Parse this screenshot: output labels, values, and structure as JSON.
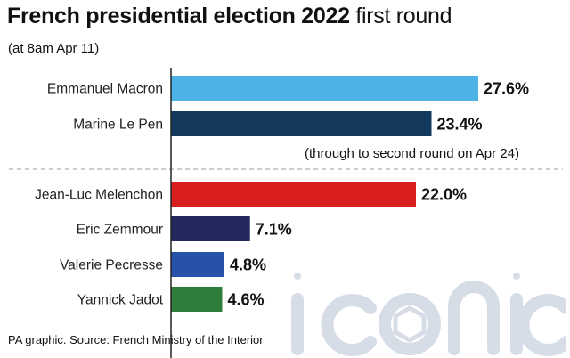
{
  "header": {
    "title_bold": "French presidential election 2022",
    "title_rest": "first round",
    "subtitle": "(at 8am Apr 11)"
  },
  "note": "(through to second round on Apr 24)",
  "source": "PA graphic. Source: French Ministry of the Interior",
  "watermark": {
    "text": "iconic"
  },
  "chart_data": {
    "type": "bar",
    "orientation": "horizontal",
    "categories": [
      "Emmanuel Macron",
      "Marine Le Pen",
      "Jean-Luc Melenchon",
      "Eric Zemmour",
      "Valerie Pecresse",
      "Yannick Jadot"
    ],
    "values": [
      27.6,
      23.4,
      22.0,
      7.1,
      4.8,
      4.6
    ],
    "value_labels": [
      "27.6%",
      "23.4%",
      "22.0%",
      "7.1%",
      "4.8%",
      "4.6%"
    ],
    "colors": [
      "#4db3e6",
      "#133a5c",
      "#d81e1e",
      "#23295c",
      "#2752a8",
      "#2e7d3a"
    ],
    "unit": "%",
    "title": "French presidential election 2022 first round",
    "xlabel": "",
    "ylabel": "",
    "separator_after_index": 1
  }
}
